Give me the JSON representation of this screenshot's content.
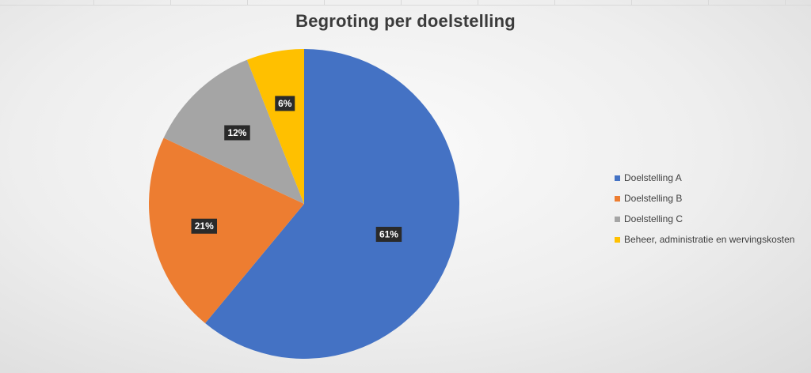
{
  "chart_data": {
    "type": "pie",
    "title": "Begroting per doelstelling",
    "categories": [
      "Doelstelling A",
      "Doelstelling B",
      "Doelstelling C",
      "Beheer, administratie en wervingskosten"
    ],
    "values": [
      61,
      21,
      12,
      6
    ],
    "value_labels": [
      "61%",
      "21%",
      "12%",
      "6%"
    ],
    "colors": [
      "#4472C4",
      "#ED7D31",
      "#A5A5A5",
      "#FFC000"
    ],
    "start_angle": "12 o'clock",
    "direction": "clockwise",
    "legend_position": "right",
    "data_label_style": "white text on dark box"
  }
}
